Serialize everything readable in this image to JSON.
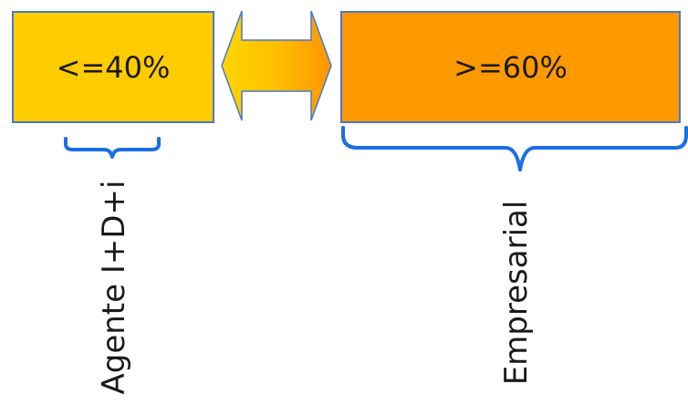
{
  "boxes": {
    "left": {
      "text": "<=40%",
      "fill": "#ffcc00"
    },
    "right": {
      "text": ">=60%",
      "fill": "#ff9900"
    }
  },
  "labels": {
    "left": "Agente I+D+i",
    "right": "Empresarial"
  },
  "colors": {
    "border": "#4a78c8",
    "brace": "#1a6ee8",
    "arrow_gradient": [
      "#ffcc00",
      "#ff9900"
    ]
  }
}
